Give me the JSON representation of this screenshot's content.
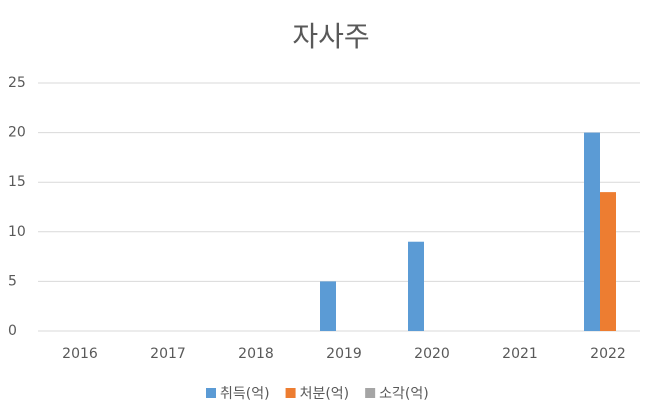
{
  "chart_data": {
    "type": "bar",
    "title": "자사주",
    "categories": [
      "2016",
      "2017",
      "2018",
      "2019",
      "2020",
      "2021",
      "2022"
    ],
    "series": [
      {
        "name": "취득(억)",
        "color": "#5b9bd5",
        "values": [
          0,
          0,
          0,
          5,
          9,
          0,
          20
        ]
      },
      {
        "name": "처분(억)",
        "color": "#ed7d31",
        "values": [
          0,
          0,
          0,
          0,
          0,
          0,
          14
        ]
      },
      {
        "name": "소각(억)",
        "color": "#a5a5a5",
        "values": [
          0,
          0,
          0,
          0,
          0,
          0,
          0
        ]
      }
    ],
    "ylim": [
      0,
      25
    ],
    "yticks": [
      0,
      5,
      10,
      15,
      20,
      25
    ],
    "grid": true,
    "legend": "bottom"
  }
}
